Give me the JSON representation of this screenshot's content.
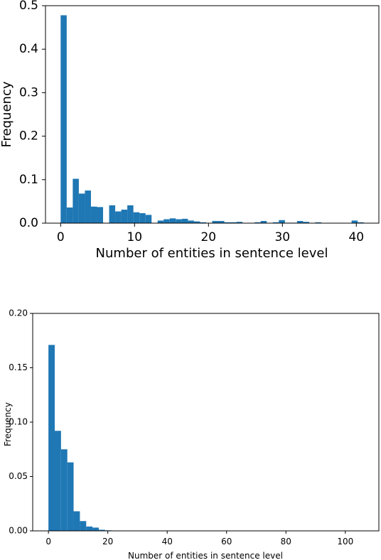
{
  "chart_data": [
    {
      "type": "bar",
      "xlabel": "Number of entities in sentence level",
      "ylabel": "Frequency",
      "xlim": [
        -2.05,
        43.05
      ],
      "ylim": [
        0,
        0.5
      ],
      "xticks": [
        0,
        10,
        20,
        30,
        40
      ],
      "yticks": [
        0.0,
        0.1,
        0.2,
        0.3,
        0.4,
        0.5
      ],
      "ytick_labels": [
        "0.0",
        "0.1",
        "0.2",
        "0.3",
        "0.4",
        "0.5"
      ],
      "bar_color": "#1f77b4",
      "grid": false,
      "bin_edges": [
        0,
        0.82,
        1.64,
        2.46,
        3.28,
        4.1,
        4.92,
        5.74,
        6.56,
        7.38,
        8.2,
        9.02,
        9.84,
        10.66,
        11.48,
        12.3,
        13.12,
        13.94,
        14.76,
        15.58,
        16.4,
        17.22,
        18.04,
        18.86,
        19.68,
        20.5,
        21.32,
        22.14,
        22.96,
        23.78,
        24.6,
        25.42,
        26.24,
        27.06,
        27.88,
        28.7,
        29.52,
        30.34,
        31.16,
        31.98,
        32.8,
        33.62,
        34.44,
        35.26,
        36.08,
        36.9,
        37.72,
        38.54,
        39.36,
        40.18,
        41.0
      ],
      "values": [
        0.478,
        0.036,
        0.102,
        0.068,
        0.075,
        0.038,
        0.037,
        0.0,
        0.041,
        0.027,
        0.031,
        0.041,
        0.025,
        0.023,
        0.019,
        0.0,
        0.006,
        0.009,
        0.011,
        0.009,
        0.01,
        0.006,
        0.004,
        0.002,
        0.0,
        0.005,
        0.005,
        0.002,
        0.002,
        0.003,
        0.0,
        0.0,
        0.002,
        0.005,
        0.0,
        0.002,
        0.007,
        0.001,
        0.001,
        0.005,
        0.003,
        0.0,
        0.002,
        0.0,
        0.0,
        0.0,
        0.0,
        0.0,
        0.006,
        0.002
      ]
    },
    {
      "type": "bar",
      "xlabel": "Number of entities in sentence level",
      "ylabel": "Frequency",
      "xlim": [
        -5.3,
        111.3
      ],
      "ylim": [
        0,
        0.2
      ],
      "xticks": [
        0,
        20,
        40,
        60,
        80,
        100
      ],
      "yticks": [
        0.0,
        0.05,
        0.1,
        0.15,
        0.2
      ],
      "ytick_labels": [
        "0.00",
        "0.05",
        "0.10",
        "0.15",
        "0.20"
      ],
      "bar_color": "#1f77b4",
      "grid": false,
      "bin_edges": [
        0,
        2.12,
        4.24,
        6.36,
        8.48,
        10.6,
        12.72,
        14.84,
        16.96,
        19.08,
        21.2,
        23.32,
        25.44,
        27.56,
        29.68,
        31.8,
        33.92,
        36.04,
        38.16,
        40.28,
        42.4,
        44.52,
        46.64,
        48.76,
        50.88,
        53.0,
        55.12,
        57.24,
        59.36,
        61.48,
        63.6,
        65.72,
        67.84,
        69.96,
        72.08,
        74.2,
        76.32,
        78.44,
        80.56,
        82.68,
        84.8,
        86.92,
        89.04,
        91.16,
        93.28,
        95.4,
        97.52,
        99.64,
        101.76,
        103.88,
        106.0
      ],
      "values": [
        0.171,
        0.092,
        0.075,
        0.063,
        0.018,
        0.009,
        0.004,
        0.003,
        0.001,
        0.0005,
        0.0003,
        0.0002,
        0.0001,
        0,
        0,
        0,
        0,
        0,
        0,
        0,
        0,
        0,
        0,
        0,
        0,
        0,
        0,
        0,
        0,
        0,
        0,
        0,
        0,
        0,
        0,
        0,
        0,
        0,
        0,
        0,
        0,
        0,
        0,
        0,
        0,
        0,
        0,
        0,
        0,
        0
      ]
    }
  ]
}
